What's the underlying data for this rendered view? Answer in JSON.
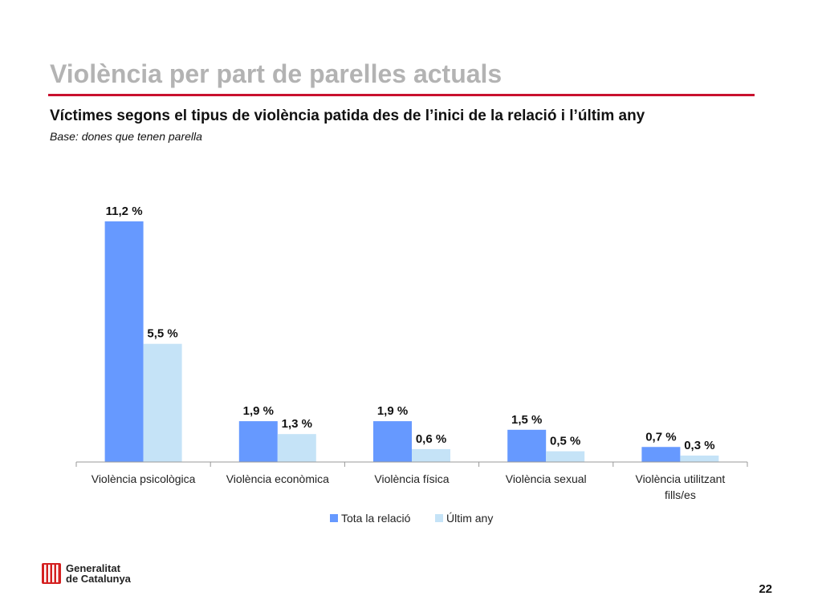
{
  "slide": {
    "title": "Violència per part de parelles actuals",
    "subtitle": "Víctimes segons el tipus de violència patida des de l’inici de la relació i l’últim any",
    "base_note": "Base: dones que tenen parella",
    "page_number": "22",
    "accent_color": "#c8102e"
  },
  "logo": {
    "line1": "Generalitat",
    "line2": "de Catalunya",
    "icon": "senyera-icon"
  },
  "chart_data": {
    "type": "bar",
    "categories": [
      [
        "Violència psicològica"
      ],
      [
        "Violència econòmica"
      ],
      [
        "Violència física"
      ],
      [
        "Violència sexual"
      ],
      [
        "Violència utilitzant",
        "fills/es"
      ]
    ],
    "series": [
      {
        "name": "Tota la relació",
        "color": "#6699ff",
        "values": [
          11.2,
          1.9,
          1.9,
          1.5,
          0.7
        ],
        "labels": [
          "11,2 %",
          "1,9 %",
          "1,9 %",
          "1,5 %",
          "0,7 %"
        ]
      },
      {
        "name": "Últim any",
        "color": "#c5e3f7",
        "values": [
          5.5,
          1.3,
          0.6,
          0.5,
          0.3
        ],
        "labels": [
          "5,5 %",
          "1,3 %",
          "0,6 %",
          "0,5 %",
          "0,3 %"
        ]
      }
    ],
    "ylim": [
      0,
      11.2
    ],
    "grid": false,
    "legend_position": "bottom-center"
  }
}
